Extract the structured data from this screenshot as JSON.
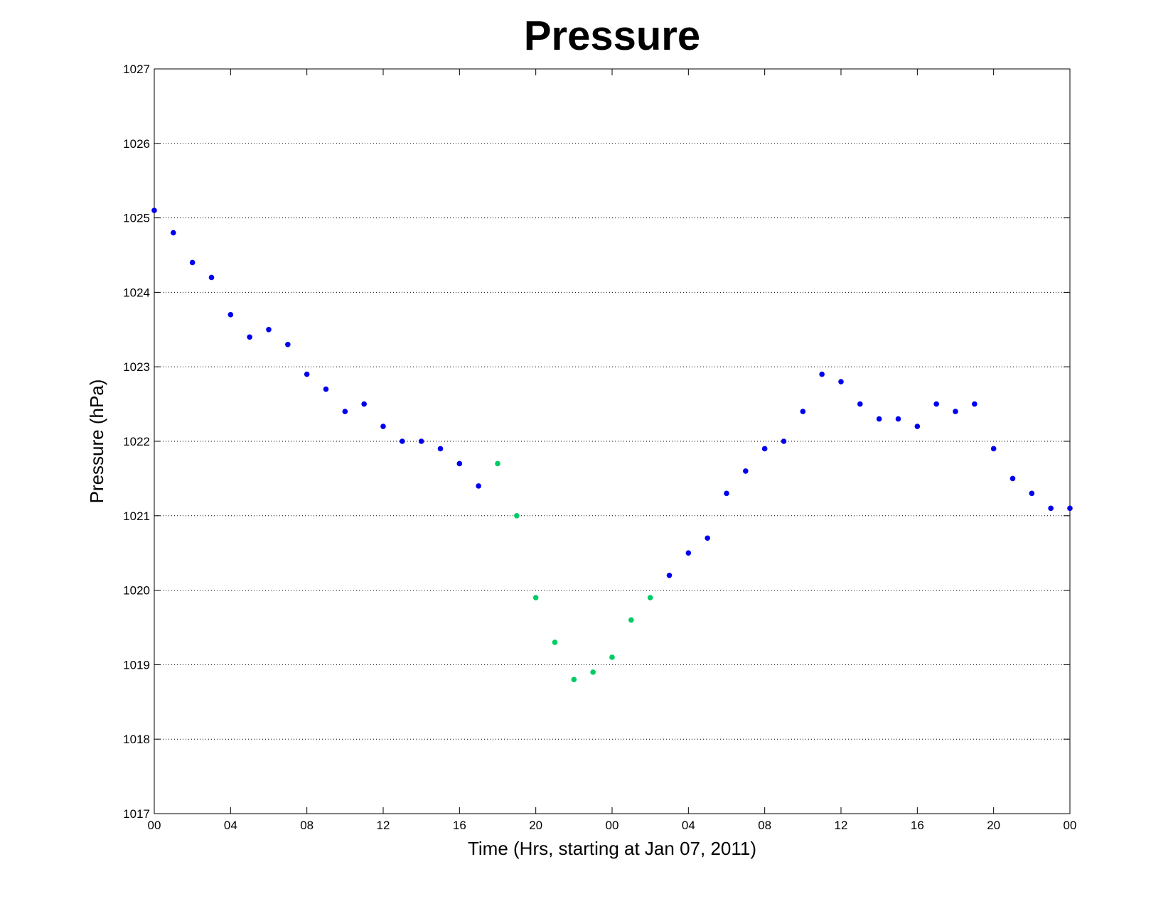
{
  "chart_data": {
    "type": "scatter",
    "title": "Pressure",
    "xlabel": "Time (Hrs, starting at Jan 07, 2011)",
    "ylabel": "Pressure (hPa)",
    "xlim": [
      0,
      48
    ],
    "ylim": [
      1017,
      1027
    ],
    "x_ticks": [
      0,
      4,
      8,
      12,
      16,
      20,
      24,
      28,
      32,
      36,
      40,
      44,
      48
    ],
    "x_tick_labels": [
      "00",
      "04",
      "08",
      "12",
      "16",
      "20",
      "00",
      "04",
      "08",
      "12",
      "16",
      "20",
      "00"
    ],
    "y_ticks": [
      1017,
      1018,
      1019,
      1020,
      1021,
      1022,
      1023,
      1024,
      1025,
      1026,
      1027
    ],
    "y_tick_labels": [
      "1017",
      "1018",
      "1019",
      "1020",
      "1021",
      "1022",
      "1023",
      "1024",
      "1025",
      "1026",
      "1027"
    ],
    "grid": "horizontal dotted",
    "series": [
      {
        "color": "#0000ee",
        "points": [
          [
            0,
            1025.1
          ],
          [
            1,
            1024.8
          ],
          [
            2,
            1024.4
          ],
          [
            3,
            1024.2
          ],
          [
            4,
            1023.7
          ],
          [
            5,
            1023.4
          ],
          [
            6,
            1023.5
          ],
          [
            7,
            1023.3
          ],
          [
            8,
            1022.9
          ],
          [
            9,
            1022.7
          ],
          [
            10,
            1022.4
          ],
          [
            11,
            1022.5
          ],
          [
            12,
            1022.2
          ],
          [
            13,
            1022.0
          ],
          [
            14,
            1022.0
          ],
          [
            15,
            1021.9
          ],
          [
            16,
            1021.7
          ],
          [
            17,
            1021.4
          ],
          [
            27,
            1020.2
          ],
          [
            28,
            1020.5
          ],
          [
            29,
            1020.7
          ],
          [
            30,
            1021.3
          ],
          [
            31,
            1021.6
          ],
          [
            32,
            1021.9
          ],
          [
            33,
            1022.0
          ],
          [
            34,
            1022.4
          ],
          [
            35,
            1022.9
          ],
          [
            36,
            1022.8
          ],
          [
            37,
            1022.5
          ],
          [
            38,
            1022.3
          ],
          [
            39,
            1022.3
          ],
          [
            40,
            1022.2
          ],
          [
            41,
            1022.5
          ],
          [
            42,
            1022.4
          ],
          [
            43,
            1022.5
          ],
          [
            44,
            1021.9
          ],
          [
            45,
            1021.5
          ],
          [
            46,
            1021.3
          ],
          [
            47,
            1021.1
          ],
          [
            48,
            1021.1
          ]
        ]
      },
      {
        "color": "#00cc66",
        "points": [
          [
            18,
            1021.7
          ],
          [
            19,
            1021.0
          ],
          [
            20,
            1019.9
          ],
          [
            21,
            1019.3
          ],
          [
            22,
            1018.8
          ],
          [
            23,
            1018.9
          ],
          [
            24,
            1019.1
          ],
          [
            25,
            1019.6
          ],
          [
            26,
            1019.9
          ]
        ]
      }
    ]
  }
}
